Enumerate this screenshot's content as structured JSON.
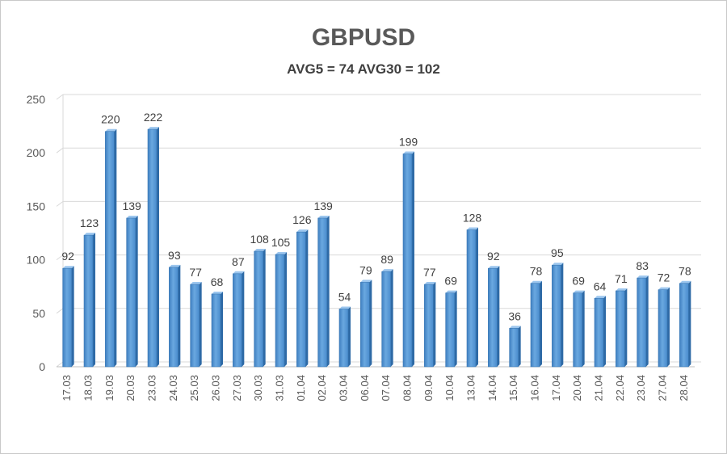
{
  "chart_data": {
    "type": "bar",
    "title": "GBPUSD",
    "subtitle": "AVG5 = 74 AVG30 = 102",
    "categories": [
      "17.03",
      "18.03",
      "19.03",
      "20.03",
      "23.03",
      "24.03",
      "25.03",
      "26.03",
      "27.03",
      "30.03",
      "31.03",
      "01.04",
      "02.04",
      "03.04",
      "06.04",
      "07.04",
      "08.04",
      "09.04",
      "10.04",
      "13.04",
      "14.04",
      "15.04",
      "16.04",
      "17.04",
      "20.04",
      "21.04",
      "22.04",
      "23.04",
      "27.04",
      "28.04"
    ],
    "values": [
      92,
      123,
      220,
      139,
      222,
      93,
      77,
      68,
      87,
      108,
      105,
      126,
      139,
      54,
      79,
      89,
      199,
      77,
      69,
      128,
      92,
      36,
      78,
      95,
      69,
      64,
      71,
      83,
      72,
      78
    ],
    "ylim": [
      0,
      250
    ],
    "yticks": [
      0,
      50,
      100,
      150,
      200,
      250
    ],
    "grid": true,
    "legend": "none",
    "bar_color": "#5b9bd5"
  }
}
